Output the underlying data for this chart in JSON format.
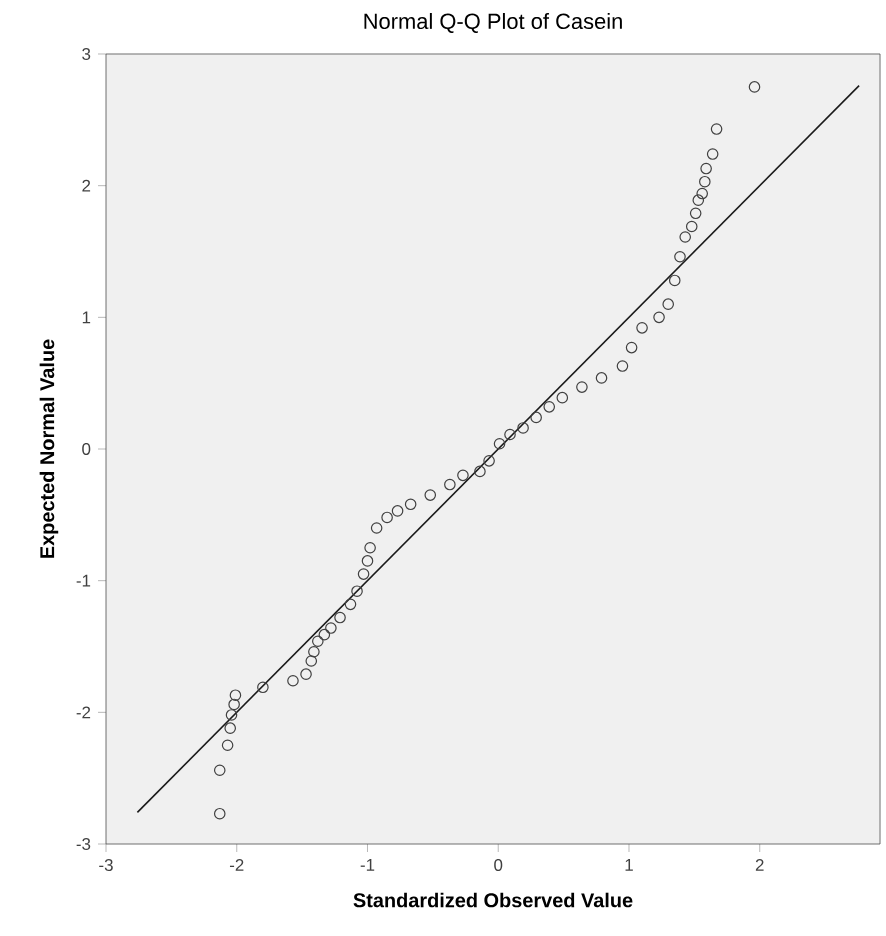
{
  "chart_data": {
    "type": "scatter",
    "title": "Normal Q-Q Plot of Casein",
    "xlabel": "Standardized Observed Value",
    "ylabel": "Expected Normal Value",
    "xlim": [
      -3,
      2.92
    ],
    "ylim": [
      -3,
      3
    ],
    "xticks": [
      -3,
      -2,
      -1,
      0,
      1,
      2
    ],
    "yticks": [
      -3,
      -2,
      -1,
      0,
      1,
      2,
      3
    ],
    "grid": false,
    "series": [
      {
        "color": "#404040",
        "marker": "circle",
        "x": [
          -2.13,
          -2.13,
          -2.07,
          -2.05,
          -2.04,
          -2.02,
          -2.01,
          -1.8,
          -1.57,
          -1.47,
          -1.43,
          -1.41,
          -1.38,
          -1.33,
          -1.28,
          -1.21,
          -1.13,
          -1.08,
          -1.03,
          -1.0,
          -0.98,
          -0.93,
          -0.85,
          -0.77,
          -0.67,
          -0.52,
          -0.37,
          -0.27,
          -0.14,
          -0.07,
          0.01,
          0.09,
          0.19,
          0.29,
          0.39,
          0.49,
          0.64,
          0.79,
          0.95,
          1.02,
          1.1,
          1.23,
          1.3,
          1.35,
          1.39,
          1.43,
          1.48,
          1.51,
          1.53,
          1.56,
          1.58,
          1.59,
          1.64,
          1.67,
          1.96
        ],
        "values": [
          -2.77,
          -2.44,
          -2.25,
          -2.12,
          -2.02,
          -1.94,
          -1.87,
          -1.81,
          -1.76,
          -1.71,
          -1.61,
          -1.54,
          -1.46,
          -1.41,
          -1.36,
          -1.28,
          -1.18,
          -1.08,
          -0.95,
          -0.85,
          -0.75,
          -0.6,
          -0.52,
          -0.47,
          -0.42,
          -0.35,
          -0.27,
          -0.2,
          -0.17,
          -0.09,
          0.04,
          0.11,
          0.16,
          0.24,
          0.32,
          0.39,
          0.47,
          0.54,
          0.63,
          0.77,
          0.92,
          1.0,
          1.1,
          1.28,
          1.46,
          1.61,
          1.69,
          1.79,
          1.89,
          1.94,
          2.03,
          2.13,
          2.24,
          2.43,
          2.75
        ]
      },
      {
        "type": "line",
        "color": "#1a1a1a",
        "marker": "none",
        "line_style": "solid",
        "x": [
          -2.76,
          2.76
        ],
        "values": [
          -2.76,
          2.76
        ]
      }
    ]
  }
}
